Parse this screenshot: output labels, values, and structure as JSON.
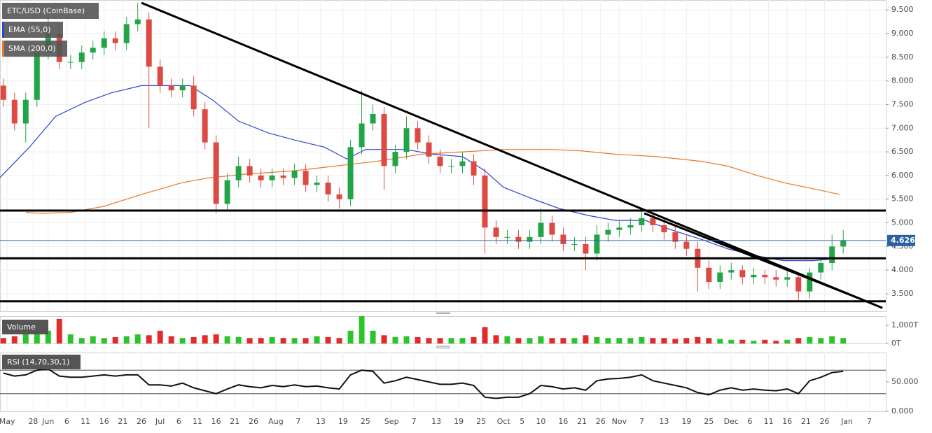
{
  "chart_data": [
    {
      "type": "candlestick",
      "title": "ETC/USD (CoinBase)",
      "up_color": "#22a447",
      "down_color": "#dd4a43",
      "last_price_color": "#2b5fa6",
      "x": [
        -12,
        -9,
        -6,
        -3,
        0,
        3,
        6,
        9,
        12,
        15,
        18,
        21,
        24,
        27,
        30,
        33,
        36,
        39,
        42,
        45,
        48,
        51,
        54,
        57,
        60,
        63,
        66,
        69,
        72,
        75,
        78,
        81,
        84,
        87,
        90,
        93,
        96,
        99,
        102,
        105,
        108,
        111,
        114,
        117,
        120,
        123,
        126,
        129,
        132,
        135,
        138,
        141,
        144,
        147,
        150,
        153,
        156,
        159,
        162,
        165,
        168,
        171,
        174,
        177,
        180,
        183,
        186,
        189,
        192,
        195,
        198,
        201,
        204,
        207,
        210,
        213
      ],
      "open": [
        7.9,
        7.6,
        7.1,
        7.6,
        8.6,
        9.0,
        8.4,
        8.4,
        8.6,
        8.7,
        8.9,
        8.8,
        9.2,
        9.3,
        8.3,
        7.9,
        7.8,
        7.9,
        7.4,
        6.7,
        5.4,
        5.9,
        6.2,
        6.0,
        5.9,
        6.0,
        5.95,
        6.1,
        5.8,
        5.85,
        5.6,
        5.5,
        6.6,
        7.1,
        7.3,
        6.2,
        6.5,
        7.0,
        6.7,
        6.4,
        6.2,
        6.2,
        6.3,
        6.0,
        4.9,
        4.7,
        4.7,
        4.6,
        4.7,
        5.0,
        4.75,
        4.55,
        4.55,
        4.35,
        4.75,
        4.85,
        4.9,
        4.95,
        5.1,
        4.95,
        4.8,
        4.6,
        4.45,
        4.05,
        3.75,
        3.95,
        4.0,
        3.85,
        3.9,
        3.85,
        3.8,
        3.85,
        3.55,
        3.95,
        4.15,
        4.5
      ],
      "high": [
        8.05,
        7.75,
        7.75,
        8.75,
        9.6,
        9.15,
        8.55,
        8.75,
        8.85,
        9.05,
        9.05,
        9.35,
        9.65,
        9.45,
        8.45,
        8.05,
        8.05,
        8.1,
        7.55,
        6.85,
        6.05,
        6.4,
        6.35,
        6.15,
        6.15,
        6.15,
        6.25,
        6.25,
        6.0,
        6.0,
        5.75,
        6.75,
        7.8,
        7.5,
        7.45,
        6.65,
        7.25,
        7.15,
        6.85,
        6.55,
        6.35,
        6.5,
        6.45,
        6.15,
        5.05,
        4.85,
        4.85,
        4.85,
        5.3,
        5.15,
        4.9,
        4.7,
        4.7,
        4.95,
        5.0,
        5.05,
        5.1,
        5.3,
        5.2,
        5.1,
        4.95,
        4.75,
        4.6,
        4.2,
        4.1,
        4.15,
        4.1,
        4.05,
        4.0,
        4.0,
        4.0,
        3.95,
        4.05,
        4.25,
        4.75,
        4.85
      ],
      "low": [
        7.45,
        6.95,
        6.7,
        7.45,
        8.45,
        8.25,
        8.25,
        8.25,
        8.45,
        8.55,
        8.65,
        8.65,
        9.05,
        7.0,
        7.75,
        7.65,
        7.65,
        7.25,
        6.55,
        5.2,
        5.25,
        5.75,
        5.85,
        5.75,
        5.75,
        5.8,
        5.8,
        5.65,
        5.65,
        5.45,
        5.3,
        5.35,
        6.45,
        6.95,
        5.7,
        6.05,
        6.35,
        6.55,
        6.25,
        6.05,
        6.05,
        6.05,
        5.8,
        4.35,
        4.55,
        4.55,
        4.45,
        4.45,
        4.55,
        4.6,
        4.4,
        4.4,
        4.0,
        4.2,
        4.6,
        4.7,
        4.75,
        4.8,
        4.8,
        4.65,
        4.45,
        4.3,
        3.55,
        3.6,
        3.6,
        3.8,
        3.7,
        3.7,
        3.7,
        3.65,
        3.65,
        3.35,
        3.4,
        3.8,
        4.0,
        4.35
      ],
      "close": [
        7.6,
        7.1,
        7.6,
        8.6,
        9.0,
        8.4,
        8.4,
        8.6,
        8.7,
        8.9,
        8.8,
        9.2,
        9.3,
        8.3,
        7.9,
        7.8,
        7.9,
        7.4,
        6.7,
        5.4,
        5.9,
        6.2,
        6.0,
        5.9,
        6.0,
        5.95,
        6.1,
        5.8,
        5.85,
        5.6,
        5.5,
        6.6,
        7.1,
        7.3,
        6.2,
        6.5,
        7.0,
        6.7,
        6.4,
        6.2,
        6.2,
        6.3,
        6.0,
        4.9,
        4.7,
        4.7,
        4.6,
        4.7,
        5.0,
        4.75,
        4.55,
        4.55,
        4.35,
        4.75,
        4.85,
        4.9,
        4.95,
        5.1,
        4.95,
        4.8,
        4.6,
        4.45,
        4.05,
        3.75,
        3.95,
        4.0,
        3.85,
        3.9,
        3.85,
        3.8,
        3.85,
        3.55,
        3.95,
        4.15,
        4.5,
        4.626
      ],
      "series": [
        {
          "name": "EMA (55,0)",
          "color": "#2f43d6",
          "x": [
            -13,
            -5,
            2,
            10,
            17,
            25,
            32,
            38,
            44,
            51,
            59,
            66,
            74,
            80,
            85,
            89,
            96,
            103,
            111,
            117,
            122,
            130,
            137,
            145,
            152,
            160,
            167,
            175,
            182,
            190,
            197,
            205,
            212
          ],
          "values": [
            5.95,
            6.6,
            7.25,
            7.55,
            7.75,
            7.9,
            7.9,
            7.9,
            7.6,
            7.15,
            6.9,
            6.75,
            6.6,
            6.35,
            6.55,
            6.55,
            6.55,
            6.45,
            6.4,
            6.1,
            5.75,
            5.5,
            5.3,
            5.15,
            5.05,
            5.05,
            4.85,
            4.65,
            4.45,
            4.3,
            4.2,
            4.2,
            4.25
          ]
        },
        {
          "name": "SMA (200,0)",
          "color": "#e8792b",
          "x": [
            -6,
            -2,
            6,
            15,
            25,
            36,
            43,
            53,
            66,
            77,
            88,
            100,
            111,
            122,
            135,
            143,
            152,
            163,
            175,
            182,
            190,
            197,
            205,
            212
          ],
          "values": [
            5.22,
            5.2,
            5.22,
            5.35,
            5.6,
            5.85,
            5.95,
            6.03,
            6.1,
            6.2,
            6.3,
            6.45,
            6.5,
            6.55,
            6.55,
            6.52,
            6.45,
            6.4,
            6.3,
            6.2,
            6.0,
            5.85,
            5.72,
            5.6
          ]
        }
      ],
      "levels": [
        5.26,
        4.25,
        3.34
      ],
      "trend_lines": [
        [
          25,
          9.65,
          223.5,
          3.2
        ],
        [
          159.7,
          5.2,
          218,
          3.38
        ]
      ],
      "xlim": [
        -12.9,
        224.4
      ],
      "ylim": [
        3.13,
        9.71
      ],
      "yticks": [
        {
          "value": 3.5,
          "label": "3.500"
        },
        {
          "value": 4,
          "label": "4.000"
        },
        {
          "value": 4.5,
          "label": "4.500"
        },
        {
          "value": 5,
          "label": "5.000"
        },
        {
          "value": 5.5,
          "label": "5.500"
        },
        {
          "value": 6,
          "label": "6.000"
        },
        {
          "value": 6.5,
          "label": "6.500"
        },
        {
          "value": 7,
          "label": "7.000"
        },
        {
          "value": 7.5,
          "label": "7.500"
        },
        {
          "value": 8,
          "label": "8.000"
        },
        {
          "value": 8.5,
          "label": "8.500"
        },
        {
          "value": 9,
          "label": "9.000"
        },
        {
          "value": 9.5,
          "label": "9.500"
        }
      ],
      "xticks": [
        {
          "value": -11,
          "label": "May"
        },
        {
          "value": -4,
          "label": "28"
        },
        {
          "value": 0,
          "label": "Jun"
        },
        {
          "value": 5,
          "label": "6"
        },
        {
          "value": 10,
          "label": "11"
        },
        {
          "value": 15,
          "label": "16"
        },
        {
          "value": 20,
          "label": "21"
        },
        {
          "value": 25,
          "label": "26"
        },
        {
          "value": 30,
          "label": "Jul"
        },
        {
          "value": 35,
          "label": "6"
        },
        {
          "value": 40,
          "label": "11"
        },
        {
          "value": 45,
          "label": "16"
        },
        {
          "value": 50,
          "label": "21"
        },
        {
          "value": 55,
          "label": "26"
        },
        {
          "value": 61,
          "label": "Aug"
        },
        {
          "value": 67,
          "label": "7"
        },
        {
          "value": 73,
          "label": "13"
        },
        {
          "value": 79,
          "label": "19"
        },
        {
          "value": 85,
          "label": "25"
        },
        {
          "value": 92,
          "label": "Sep"
        },
        {
          "value": 98,
          "label": "7"
        },
        {
          "value": 104,
          "label": "13"
        },
        {
          "value": 110,
          "label": "19"
        },
        {
          "value": 116,
          "label": "25"
        },
        {
          "value": 122,
          "label": "Oct"
        },
        {
          "value": 127,
          "label": "5"
        },
        {
          "value": 132,
          "label": "10"
        },
        {
          "value": 138,
          "label": "16"
        },
        {
          "value": 143,
          "label": "21"
        },
        {
          "value": 148,
          "label": "26"
        },
        {
          "value": 153,
          "label": "Nov"
        },
        {
          "value": 159,
          "label": "7"
        },
        {
          "value": 165,
          "label": "13"
        },
        {
          "value": 171,
          "label": "19"
        },
        {
          "value": 177,
          "label": "25"
        },
        {
          "value": 183,
          "label": "Dec"
        },
        {
          "value": 188,
          "label": "6"
        },
        {
          "value": 193,
          "label": "11"
        },
        {
          "value": 198,
          "label": "16"
        },
        {
          "value": 203,
          "label": "21"
        },
        {
          "value": 208,
          "label": "26"
        },
        {
          "value": 214,
          "label": "Jan"
        },
        {
          "value": 220,
          "label": "7"
        }
      ],
      "grid": true
    },
    {
      "type": "bar",
      "title": "Volume",
      "up_color": "#2ac52a",
      "down_color": "#e22b2b",
      "values": [
        300,
        400,
        500,
        600,
        700,
        1350,
        500,
        300,
        400,
        300,
        350,
        400,
        500,
        450,
        700,
        400,
        300,
        350,
        450,
        500,
        400,
        350,
        300,
        300,
        350,
        300,
        300,
        300,
        400,
        350,
        300,
        700,
        1500,
        700,
        450,
        350,
        400,
        350,
        300,
        300,
        300,
        300,
        350,
        900,
        450,
        400,
        300,
        300,
        400,
        300,
        300,
        300,
        450,
        350,
        300,
        300,
        300,
        350,
        300,
        300,
        250,
        300,
        350,
        300,
        250,
        200,
        200,
        150,
        200,
        150,
        200,
        300,
        350,
        300,
        400,
        300
      ],
      "ylim": [
        0,
        1500
      ],
      "yticks": [
        {
          "value": 0,
          "label": "0T"
        },
        {
          "value": 1000,
          "label": "1,000T"
        }
      ]
    },
    {
      "type": "line",
      "title": "RSI (14,70,30,1)",
      "color": "#111111",
      "values": [
        65,
        60,
        62,
        70,
        72,
        60,
        58,
        58,
        60,
        62,
        60,
        62,
        62,
        45,
        45,
        43,
        48,
        40,
        35,
        30,
        38,
        45,
        42,
        40,
        44,
        42,
        45,
        42,
        43,
        40,
        38,
        62,
        70,
        68,
        48,
        52,
        58,
        54,
        50,
        46,
        46,
        48,
        44,
        24,
        22,
        24,
        24,
        30,
        44,
        42,
        38,
        40,
        36,
        52,
        55,
        56,
        58,
        62,
        52,
        48,
        44,
        40,
        32,
        28,
        36,
        40,
        36,
        38,
        36,
        35,
        38,
        30,
        52,
        58,
        66,
        68
      ],
      "levels": [
        70,
        30
      ],
      "ylim": [
        0,
        100
      ],
      "yticks": [
        {
          "value": 0,
          "label": "0.000"
        },
        {
          "value": 50,
          "label": "50.000"
        }
      ]
    }
  ]
}
